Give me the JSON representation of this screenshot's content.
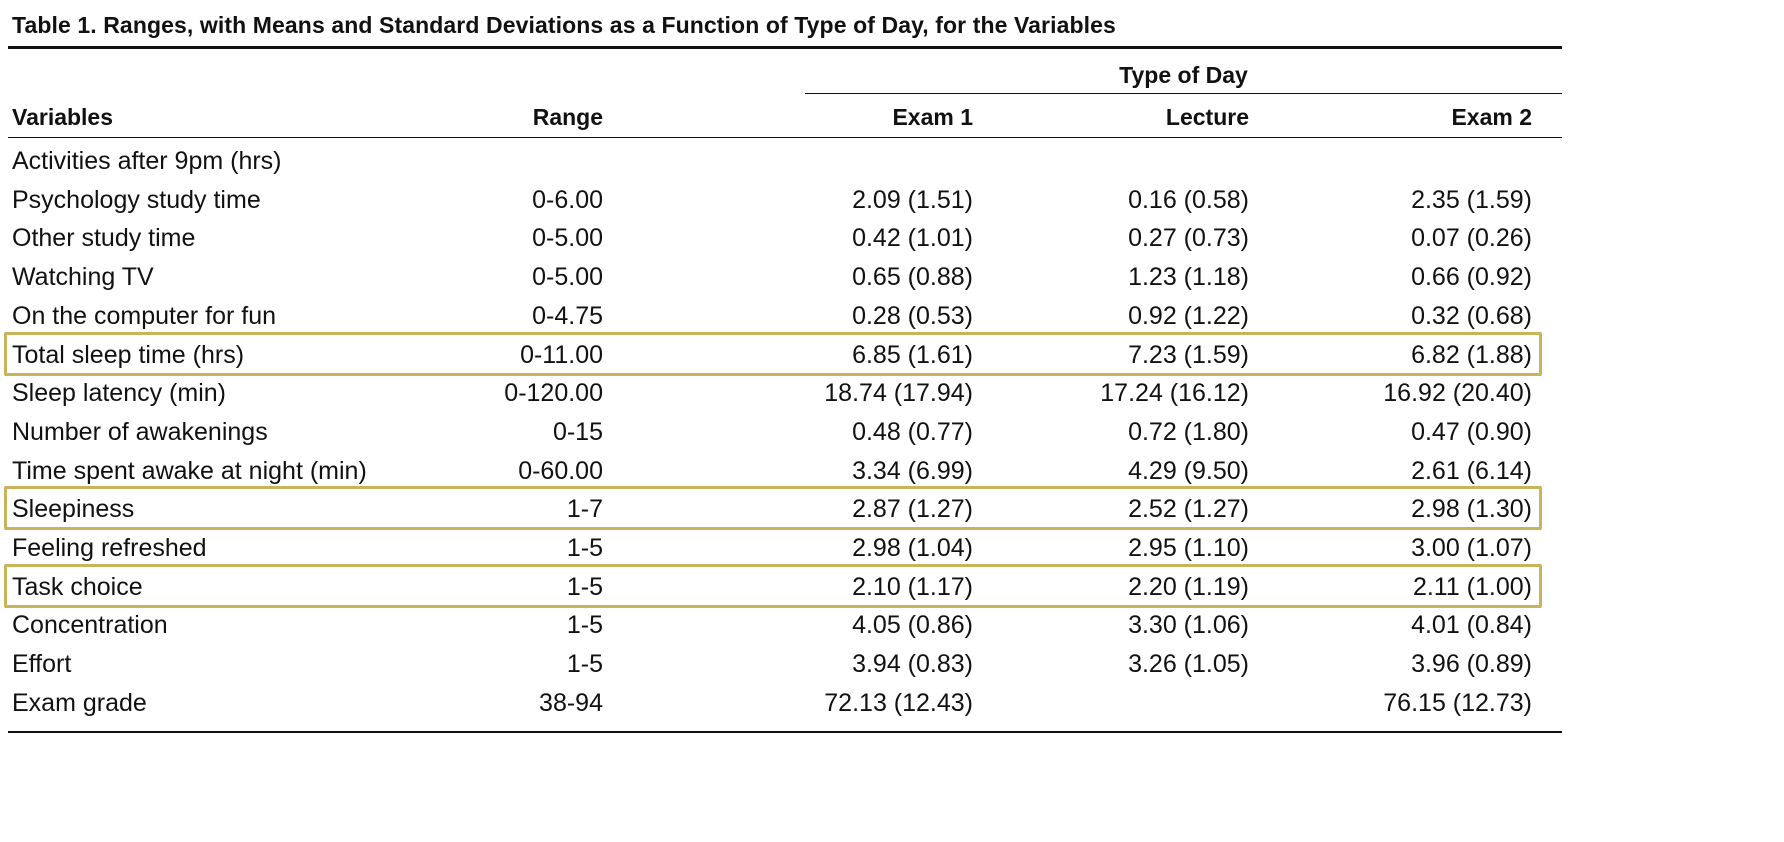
{
  "table": {
    "caption": "Table 1. Ranges, with Means and Standard Deviations as a Function of Type of Day, for the Variables",
    "group_header": "Type of Day",
    "columns": {
      "variables": "Variables",
      "range": "Range",
      "exam1": "Exam 1",
      "lecture": "Lecture",
      "exam2": "Exam 2"
    },
    "rows": [
      {
        "variable": "Activities after 9pm (hrs)",
        "range": "",
        "exam1": "",
        "lecture": "",
        "exam2": "",
        "highlighted": false
      },
      {
        "variable": "Psychology study time",
        "range": "0-6.00",
        "exam1": "2.09 (1.51)",
        "lecture": "0.16 (0.58)",
        "exam2": "2.35 (1.59)",
        "highlighted": false
      },
      {
        "variable": "Other study time",
        "range": "0-5.00",
        "exam1": "0.42 (1.01)",
        "lecture": "0.27 (0.73)",
        "exam2": "0.07 (0.26)",
        "highlighted": false
      },
      {
        "variable": "Watching TV",
        "range": "0-5.00",
        "exam1": "0.65 (0.88)",
        "lecture": "1.23 (1.18)",
        "exam2": "0.66 (0.92)",
        "highlighted": false
      },
      {
        "variable": "On the computer for fun",
        "range": "0-4.75",
        "exam1": "0.28 (0.53)",
        "lecture": "0.92 (1.22)",
        "exam2": "0.32 (0.68)",
        "highlighted": false
      },
      {
        "variable": "Total sleep time (hrs)",
        "range": "0-11.00",
        "exam1": "6.85 (1.61)",
        "lecture": "7.23 (1.59)",
        "exam2": "6.82 (1.88)",
        "highlighted": true
      },
      {
        "variable": "Sleep latency (min)",
        "range": "0-120.00",
        "exam1": "18.74 (17.94)",
        "lecture": "17.24 (16.12)",
        "exam2": "16.92 (20.40)",
        "highlighted": false
      },
      {
        "variable": "Number of awakenings",
        "range": "0-15",
        "exam1": "0.48 (0.77)",
        "lecture": "0.72 (1.80)",
        "exam2": "0.47 (0.90)",
        "highlighted": false
      },
      {
        "variable": "Time spent awake at night (min)",
        "range": "0-60.00",
        "exam1": "3.34 (6.99)",
        "lecture": "4.29 (9.50)",
        "exam2": "2.61 (6.14)",
        "highlighted": false
      },
      {
        "variable": "Sleepiness",
        "range": "1-7",
        "exam1": "2.87 (1.27)",
        "lecture": "2.52 (1.27)",
        "exam2": "2.98 (1.30)",
        "highlighted": true
      },
      {
        "variable": "Feeling refreshed",
        "range": "1-5",
        "exam1": "2.98 (1.04)",
        "lecture": "2.95 (1.10)",
        "exam2": "3.00 (1.07)",
        "highlighted": false
      },
      {
        "variable": "Task choice",
        "range": "1-5",
        "exam1": "2.10 (1.17)",
        "lecture": "2.20 (1.19)",
        "exam2": "2.11 (1.00)",
        "highlighted": true
      },
      {
        "variable": "Concentration",
        "range": "1-5",
        "exam1": "4.05 (0.86)",
        "lecture": "3.30 (1.06)",
        "exam2": "4.01 (0.84)",
        "highlighted": false
      },
      {
        "variable": "Effort",
        "range": "1-5",
        "exam1": "3.94 (0.83)",
        "lecture": "3.26 (1.05)",
        "exam2": "3.96 (0.89)",
        "highlighted": false
      },
      {
        "variable": "Exam grade",
        "range": "38-94",
        "exam1": "72.13 (12.43)",
        "lecture": "",
        "exam2": "76.15 (12.73)",
        "highlighted": false
      }
    ],
    "highlight_color": "#c9b45b"
  }
}
